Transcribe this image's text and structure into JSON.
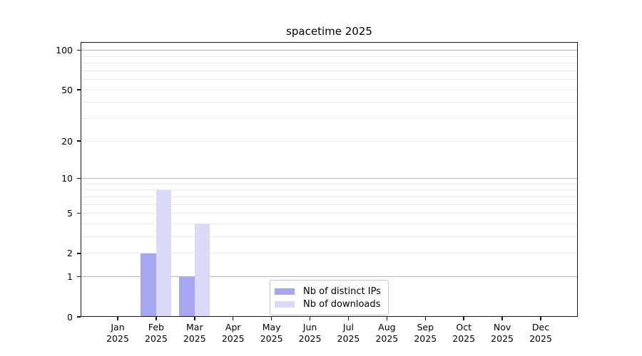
{
  "title": "spacetime 2025",
  "chart_data": {
    "type": "bar",
    "title": "spacetime 2025",
    "categories": [
      "Jan 2025",
      "Feb 2025",
      "Mar 2025",
      "Apr 2025",
      "May 2025",
      "Jun 2025",
      "Jul 2025",
      "Aug 2025",
      "Sep 2025",
      "Oct 2025",
      "Nov 2025",
      "Dec 2025"
    ],
    "series": [
      {
        "name": "Nb of distinct IPs",
        "color": "#a6a6f2",
        "values": [
          0,
          2,
          1,
          0,
          0,
          0,
          0,
          0,
          0,
          0,
          0,
          0
        ]
      },
      {
        "name": "Nb of downloads",
        "color": "#dadaf8",
        "values": [
          0,
          8,
          4,
          0,
          0,
          0,
          0,
          0,
          0,
          0,
          0,
          0
        ]
      }
    ],
    "xlabel": "",
    "ylabel": "",
    "yscale": "log1p",
    "ylim": [
      0,
      115.6
    ],
    "yticks": [
      0,
      1,
      2,
      5,
      10,
      20,
      50,
      100
    ],
    "grid": {
      "orientation": "horizontal",
      "major_values": [
        1,
        10,
        100
      ],
      "minor_values": [
        2,
        3,
        4,
        5,
        6,
        7,
        8,
        9,
        20,
        30,
        40,
        50,
        60,
        70,
        80,
        90
      ],
      "major_color": "#b8b8b8",
      "minor_color": "#ebebeb"
    },
    "legend_position": "lower center-right inside"
  },
  "colors": {
    "background": "#ffffff",
    "spine": "#1a1a1a",
    "text": "#000000"
  }
}
